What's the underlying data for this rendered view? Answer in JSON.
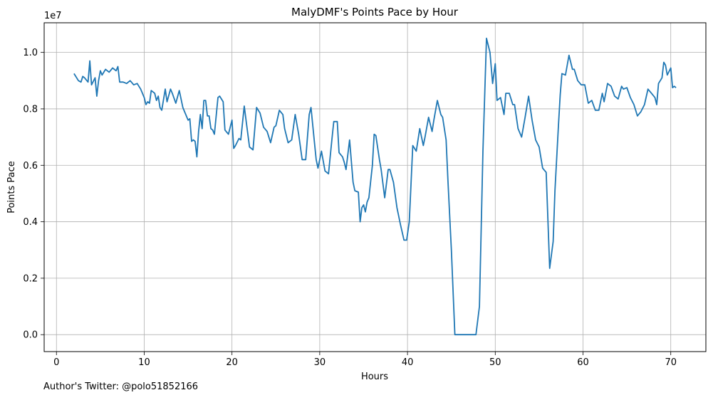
{
  "chart_data": {
    "type": "line",
    "title": "MalyDMF's Points Pace by Hour",
    "xlabel": "Hours",
    "ylabel": "Points Pace",
    "offset_label": "1e7",
    "xlim": [
      -1.4,
      74.0
    ],
    "ylim": [
      -600000,
      11050000
    ],
    "xticks": [
      0,
      10,
      20,
      30,
      40,
      50,
      60,
      70
    ],
    "xtick_labels": [
      "0",
      "10",
      "20",
      "30",
      "40",
      "50",
      "60",
      "70"
    ],
    "yticks": [
      0,
      2000000,
      4000000,
      6000000,
      8000000,
      10000000
    ],
    "ytick_labels": [
      "0.0",
      "0.2",
      "0.4",
      "0.6",
      "0.8",
      "1.0"
    ],
    "grid": true,
    "line_color": "#1f77b4",
    "series": [
      {
        "x": [
          2.0,
          2.5,
          2.8,
          3.0,
          3.2,
          3.6,
          3.8,
          4.0,
          4.4,
          4.6,
          4.8,
          5.0,
          5.2,
          5.6,
          6.0,
          6.4,
          6.8,
          7.0,
          7.2,
          7.6,
          8.0,
          8.4,
          8.8,
          9.2,
          9.6,
          10.0,
          10.2,
          10.4,
          10.6,
          10.8,
          11.2,
          11.4,
          11.6,
          11.8,
          12.0,
          12.4,
          12.6,
          13.0,
          13.2,
          13.6,
          14.0,
          14.4,
          14.6,
          15.0,
          15.2,
          15.4,
          15.6,
          15.8,
          16.0,
          16.2,
          16.4,
          16.6,
          16.8,
          17.0,
          17.2,
          17.4,
          17.6,
          17.8,
          18.0,
          18.4,
          18.6,
          19.0,
          19.2,
          19.6,
          20.0,
          20.2,
          20.4,
          20.8,
          21.0,
          21.4,
          21.6,
          22.0,
          22.4,
          22.8,
          23.2,
          23.6,
          24.0,
          24.4,
          24.8,
          25.0,
          25.4,
          25.8,
          26.0,
          26.4,
          26.8,
          27.2,
          27.6,
          28.0,
          28.4,
          28.8,
          29.0,
          29.4,
          29.6,
          29.8,
          30.2,
          30.6,
          31.0,
          31.4,
          31.6,
          32.0,
          32.2,
          32.6,
          32.8,
          33.0,
          33.4,
          33.8,
          34.0,
          34.4,
          34.6,
          34.8,
          35.0,
          35.2,
          35.4,
          35.6,
          36.0,
          36.2,
          36.4,
          36.8,
          37.0,
          37.4,
          37.8,
          38.0,
          38.4,
          38.8,
          39.2,
          39.6,
          39.9,
          40.2,
          40.6,
          41.0,
          41.4,
          41.8,
          42.0,
          42.4,
          42.8,
          43.0,
          43.4,
          43.8,
          44.0,
          44.4,
          44.6,
          45.0,
          45.4,
          45.8,
          46.2,
          46.6,
          47.0,
          47.4,
          47.8,
          48.2,
          48.6,
          49.0,
          49.4,
          49.7,
          50.0,
          50.2,
          50.6,
          51.0,
          51.2,
          51.6,
          52.0,
          52.2,
          52.6,
          53.0,
          53.4,
          53.8,
          54.2,
          54.6,
          55.0,
          55.4,
          55.8,
          56.2,
          56.6,
          56.8,
          57.2,
          57.4,
          57.6,
          58.0,
          58.4,
          58.8,
          59.0,
          59.4,
          59.8,
          60.2,
          60.6,
          61.0,
          61.4,
          61.8,
          62.2,
          62.4,
          62.8,
          63.2,
          63.6,
          64.0,
          64.4,
          64.6,
          65.0,
          65.4,
          65.8,
          66.2,
          66.6,
          67.0,
          67.4,
          67.8,
          68.2,
          68.4,
          68.6,
          69.0,
          69.2,
          69.4,
          69.6,
          70.0,
          70.2,
          70.4,
          70.6
        ],
        "values": [
          9250000,
          9000000,
          8950000,
          9150000,
          9100000,
          8950000,
          9700000,
          8850000,
          9100000,
          8450000,
          9000000,
          9350000,
          9200000,
          9400000,
          9300000,
          9450000,
          9350000,
          9500000,
          8950000,
          8950000,
          8900000,
          9000000,
          8850000,
          8900000,
          8700000,
          8400000,
          8150000,
          8250000,
          8200000,
          8650000,
          8550000,
          8300000,
          8450000,
          8050000,
          7950000,
          8700000,
          8250000,
          8700000,
          8550000,
          8200000,
          8650000,
          8050000,
          7900000,
          7600000,
          7650000,
          6850000,
          6900000,
          6850000,
          6300000,
          7200000,
          7800000,
          7300000,
          8300000,
          8300000,
          7750000,
          7750000,
          7300000,
          7250000,
          7100000,
          8400000,
          8450000,
          8250000,
          7250000,
          7100000,
          7600000,
          6600000,
          6700000,
          6950000,
          6900000,
          8100000,
          7600000,
          6650000,
          6550000,
          8050000,
          7850000,
          7350000,
          7200000,
          6800000,
          7350000,
          7400000,
          7950000,
          7800000,
          7300000,
          6800000,
          6900000,
          7800000,
          7100000,
          6200000,
          6200000,
          7800000,
          8050000,
          6800000,
          6200000,
          5900000,
          6500000,
          5800000,
          5700000,
          6950000,
          7550000,
          7550000,
          6450000,
          6300000,
          6100000,
          5850000,
          6900000,
          5400000,
          5100000,
          5050000,
          4000000,
          4500000,
          4600000,
          4350000,
          4700000,
          4850000,
          6000000,
          7100000,
          7050000,
          6200000,
          5850000,
          4850000,
          5850000,
          5850000,
          5400000,
          4500000,
          3900000,
          3350000,
          3350000,
          4000000,
          6700000,
          6500000,
          7300000,
          6700000,
          7000000,
          7700000,
          7200000,
          7600000,
          8300000,
          7800000,
          7700000,
          6900000,
          5500000,
          3000000,
          0,
          0,
          0,
          0,
          0,
          0,
          0,
          1000000,
          6500000,
          10500000,
          10000000,
          8900000,
          9600000,
          8300000,
          8400000,
          7800000,
          8550000,
          8550000,
          8150000,
          8150000,
          7300000,
          7000000,
          7700000,
          8450000,
          7600000,
          6900000,
          6650000,
          5900000,
          5750000,
          2350000,
          3300000,
          5100000,
          7400000,
          8500000,
          9250000,
          9200000,
          9900000,
          9400000,
          9400000,
          9000000,
          8850000,
          8850000,
          8200000,
          8300000,
          7950000,
          7950000,
          8550000,
          8250000,
          8900000,
          8800000,
          8450000,
          8350000,
          8800000,
          8700000,
          8750000,
          8400000,
          8150000,
          7750000,
          7900000,
          8150000,
          8700000,
          8550000,
          8400000,
          8150000,
          8900000,
          9100000,
          9650000,
          9550000,
          9200000,
          9450000,
          8750000,
          8800000,
          8750000
        ]
      }
    ]
  },
  "footer": {
    "author": "Author's Twitter: @polo51852166"
  }
}
